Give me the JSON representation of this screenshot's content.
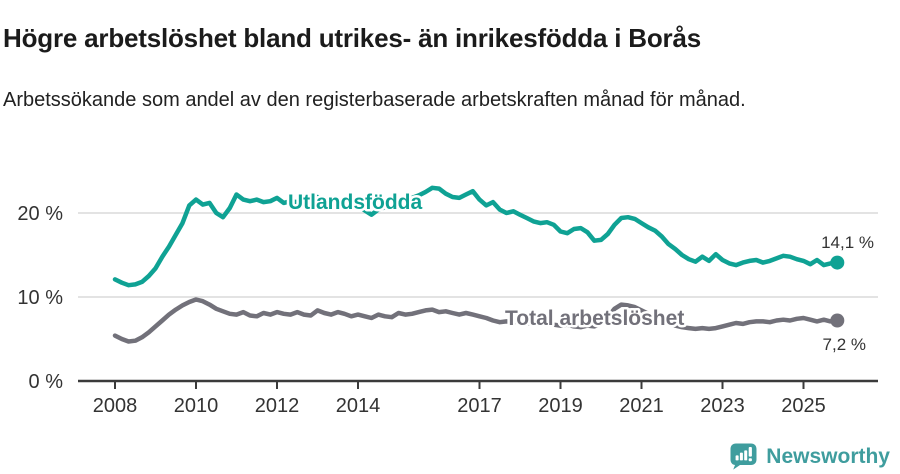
{
  "header": {
    "title": "Högre arbetslöshet bland utrikes- än inrikesfödda i Borås",
    "subtitle": "Arbetssökande som andel av den registerbaserade arbetskraften månad för månad."
  },
  "footer": {
    "brand": "Newsworthy",
    "logo_icon": "newsworthy-speech-bubble-bar-chart-icon",
    "brand_color": "#3f9d9e"
  },
  "colors": {
    "foreign_born_line": "#0fa294",
    "total_line": "#72717a",
    "gridline": "#dadada",
    "axis": "#3b3b3b",
    "axis_text": "#333333",
    "title_text": "#1b1b1b"
  },
  "chart_data": {
    "type": "line",
    "title": "Högre arbetslöshet bland utrikes- än inrikesfödda i Borås",
    "subtitle": "Arbetssökande som andel av den registerbaserade arbetskraften månad för månad.",
    "unit": "%",
    "grid": "horizontal-only",
    "legend_position": "inline-labels-on-lines",
    "x_start_year": 2008,
    "x_step_years": 0.166667,
    "x_end_year_approx": 2025.83,
    "y_axis": {
      "range": [
        0,
        25
      ],
      "ticks": [
        {
          "value": 0,
          "label": "0 %"
        },
        {
          "value": 10,
          "label": "10 %"
        },
        {
          "value": 20,
          "label": "20 %"
        }
      ]
    },
    "x_axis": {
      "ticks": [
        {
          "year": 2008,
          "label": "2008"
        },
        {
          "year": 2010,
          "label": "2010"
        },
        {
          "year": 2012,
          "label": "2012"
        },
        {
          "year": 2014,
          "label": "2014"
        },
        {
          "year": 2017,
          "label": "2017"
        },
        {
          "year": 2019,
          "label": "2019"
        },
        {
          "year": 2021,
          "label": "2021"
        },
        {
          "year": 2023,
          "label": "2023"
        },
        {
          "year": 2025,
          "label": "2025"
        }
      ]
    },
    "series": [
      {
        "id": "utlandsfodda",
        "name": "Utlandsfödda",
        "color": "#0fa294",
        "end_value": 14.1,
        "end_label": "14,1 %",
        "values": [
          12.1,
          11.7,
          11.4,
          11.5,
          11.8,
          12.5,
          13.4,
          14.8,
          16.0,
          17.4,
          18.8,
          20.9,
          21.6,
          21.0,
          21.2,
          20.0,
          19.5,
          20.6,
          22.2,
          21.6,
          21.4,
          21.6,
          21.3,
          21.4,
          21.8,
          21.2,
          21.4,
          21.3,
          21.6,
          21.4,
          21.9,
          21.2,
          20.8,
          20.6,
          21.0,
          21.3,
          20.9,
          20.3,
          19.8,
          20.4,
          20.7,
          20.9,
          21.1,
          21.4,
          21.8,
          22.1,
          22.5,
          23.0,
          22.9,
          22.3,
          21.9,
          21.8,
          22.2,
          22.6,
          21.6,
          20.9,
          21.3,
          20.4,
          20.0,
          20.2,
          19.8,
          19.4,
          19.0,
          18.8,
          18.9,
          18.6,
          17.8,
          17.6,
          18.1,
          18.2,
          17.7,
          16.7,
          16.8,
          17.5,
          18.6,
          19.4,
          19.5,
          19.3,
          18.8,
          18.3,
          17.9,
          17.2,
          16.3,
          15.7,
          15.0,
          14.5,
          14.2,
          14.8,
          14.3,
          15.1,
          14.4,
          14.0,
          13.8,
          14.1,
          14.3,
          14.4,
          14.1,
          14.3,
          14.6,
          14.9,
          14.8,
          14.5,
          14.3,
          13.9,
          14.4,
          13.8,
          14.0,
          14.1
        ]
      },
      {
        "id": "total-arbetsloshet",
        "name": "Total arbetslöshet",
        "color": "#72717a",
        "end_value": 7.2,
        "end_label": "7,2 %",
        "values": [
          5.4,
          5.0,
          4.7,
          4.8,
          5.2,
          5.8,
          6.5,
          7.2,
          7.9,
          8.5,
          9.0,
          9.4,
          9.7,
          9.5,
          9.1,
          8.6,
          8.3,
          8.0,
          7.9,
          8.2,
          7.8,
          7.7,
          8.1,
          7.9,
          8.2,
          8.0,
          7.9,
          8.2,
          7.9,
          7.8,
          8.4,
          8.1,
          7.9,
          8.2,
          8.0,
          7.7,
          7.9,
          7.7,
          7.5,
          7.9,
          7.7,
          7.6,
          8.1,
          7.9,
          8.0,
          8.2,
          8.4,
          8.5,
          8.2,
          8.3,
          8.1,
          7.9,
          8.1,
          7.9,
          7.7,
          7.5,
          7.2,
          7.0,
          7.1,
          7.0,
          7.1,
          6.9,
          6.8,
          6.9,
          6.8,
          6.7,
          6.6,
          6.7,
          6.5,
          6.4,
          6.6,
          6.5,
          6.8,
          7.6,
          8.6,
          9.1,
          9.0,
          8.8,
          8.4,
          8.0,
          7.6,
          7.2,
          6.9,
          6.6,
          6.4,
          6.3,
          6.2,
          6.3,
          6.2,
          6.3,
          6.5,
          6.7,
          6.9,
          6.8,
          7.0,
          7.1,
          7.1,
          7.0,
          7.2,
          7.3,
          7.2,
          7.4,
          7.5,
          7.3,
          7.1,
          7.3,
          7.1,
          7.2
        ]
      }
    ]
  }
}
